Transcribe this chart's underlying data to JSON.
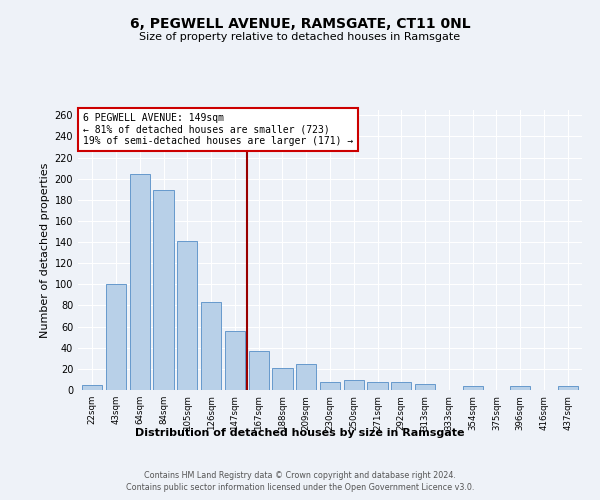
{
  "title": "6, PEGWELL AVENUE, RAMSGATE, CT11 0NL",
  "subtitle": "Size of property relative to detached houses in Ramsgate",
  "xlabel": "Distribution of detached houses by size in Ramsgate",
  "ylabel": "Number of detached properties",
  "bar_labels": [
    "22sqm",
    "43sqm",
    "64sqm",
    "84sqm",
    "105sqm",
    "126sqm",
    "147sqm",
    "167sqm",
    "188sqm",
    "209sqm",
    "230sqm",
    "250sqm",
    "271sqm",
    "292sqm",
    "313sqm",
    "333sqm",
    "354sqm",
    "375sqm",
    "396sqm",
    "416sqm",
    "437sqm"
  ],
  "bar_values": [
    5,
    100,
    204,
    189,
    141,
    83,
    56,
    37,
    21,
    25,
    8,
    9,
    8,
    8,
    6,
    0,
    4,
    0,
    4,
    0,
    4
  ],
  "bar_color": "#b8d0e8",
  "bar_edge_color": "#6699cc",
  "property_size": "149sqm",
  "annotation_line1": "6 PEGWELL AVENUE: 149sqm",
  "annotation_line2": "← 81% of detached houses are smaller (723)",
  "annotation_line3": "19% of semi-detached houses are larger (171) →",
  "vline_color": "#990000",
  "box_edge_color": "#cc0000",
  "ylim": [
    0,
    265
  ],
  "yticks": [
    0,
    20,
    40,
    60,
    80,
    100,
    120,
    140,
    160,
    180,
    200,
    220,
    240,
    260
  ],
  "background_color": "#eef2f8",
  "grid_color": "#ffffff",
  "footer_line1": "Contains HM Land Registry data © Crown copyright and database right 2024.",
  "footer_line2": "Contains public sector information licensed under the Open Government Licence v3.0."
}
